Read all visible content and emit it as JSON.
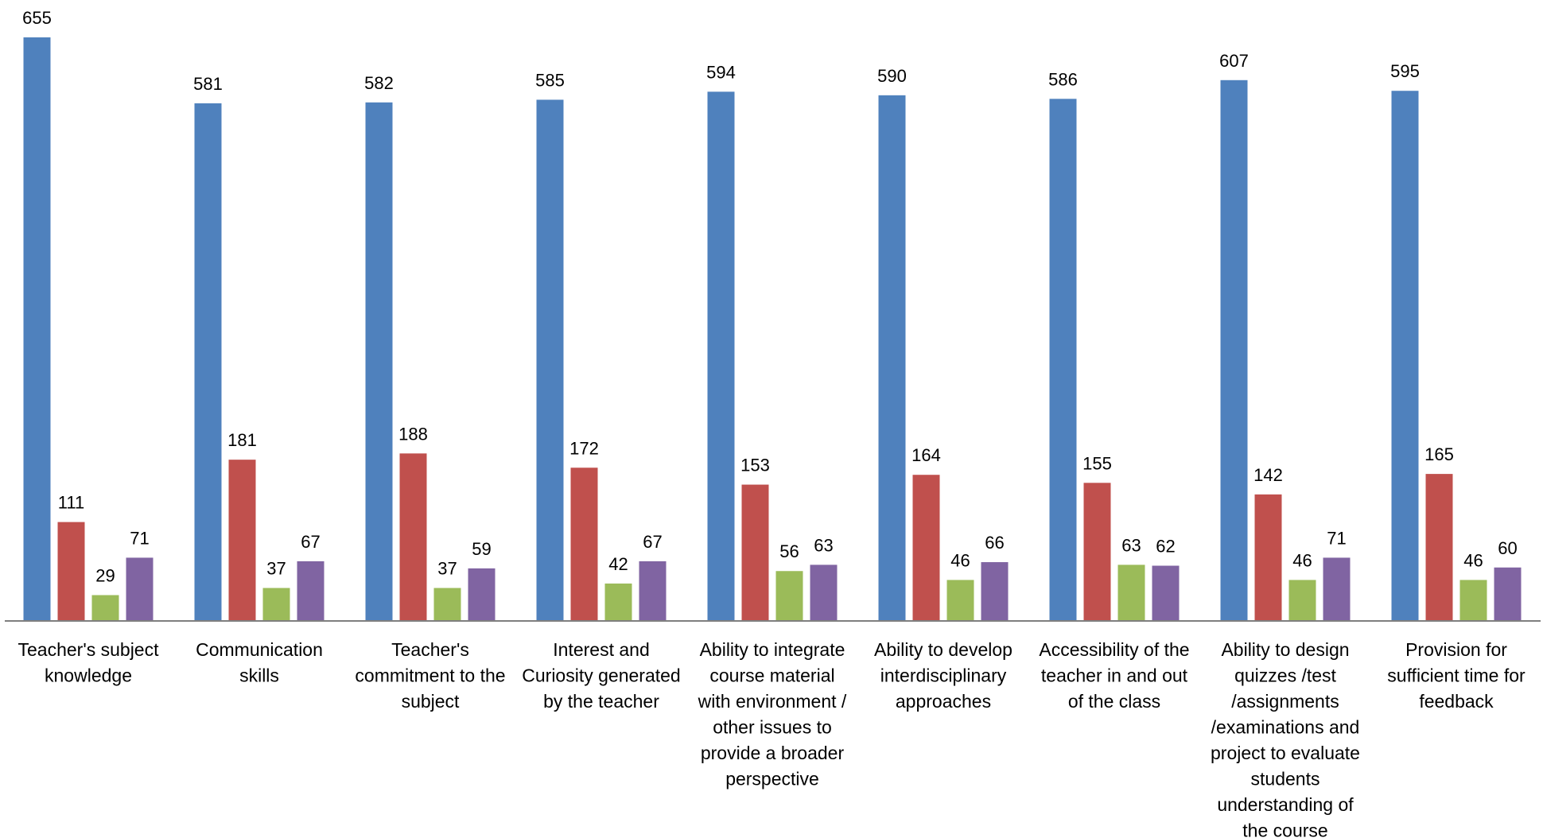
{
  "chart_data": {
    "type": "bar",
    "title": "",
    "xlabel": "",
    "ylabel": "",
    "ylim": [
      0,
      655
    ],
    "grid": false,
    "legend": "none",
    "categories": [
      [
        "Teacher's subject",
        "knowledge"
      ],
      [
        "Communication",
        "skills"
      ],
      [
        "Teacher's",
        "commitment to the",
        "subject"
      ],
      [
        "Interest and",
        "Curiosity generated",
        "by the teacher"
      ],
      [
        "Ability to integrate",
        "course material",
        "with environment /",
        "other issues to",
        "provide a broader",
        "perspective"
      ],
      [
        "Ability to develop",
        "interdisciplinary",
        "approaches"
      ],
      [
        "Accessibility of the",
        "teacher in and out",
        "of the class"
      ],
      [
        "Ability to design",
        "quizzes /test",
        "/assignments",
        "/examinations and",
        "project to evaluate",
        "students",
        "understanding of",
        "the course"
      ],
      [
        "Provision for",
        "sufficient time for",
        "feedback"
      ]
    ],
    "series": [
      {
        "color": "#4f81bd",
        "values": [
          655,
          581,
          582,
          585,
          594,
          590,
          586,
          607,
          595
        ]
      },
      {
        "color": "#c0504d",
        "values": [
          111,
          181,
          188,
          172,
          153,
          164,
          155,
          142,
          165
        ]
      },
      {
        "color": "#9bbb59",
        "values": [
          29,
          37,
          37,
          42,
          56,
          46,
          63,
          46,
          46
        ]
      },
      {
        "color": "#8064a2",
        "values": [
          71,
          67,
          59,
          67,
          63,
          66,
          62,
          71,
          60
        ]
      }
    ]
  }
}
